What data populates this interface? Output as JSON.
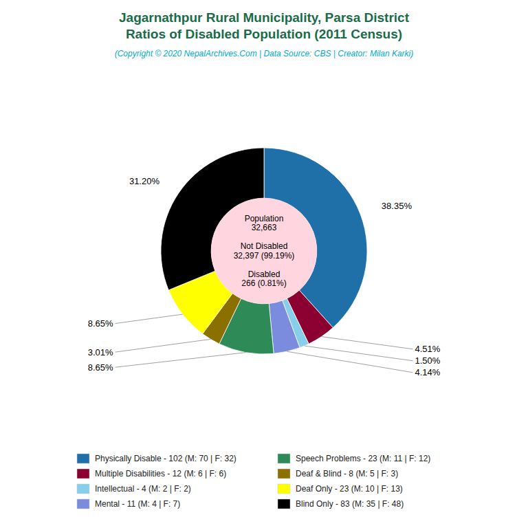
{
  "chart_data": {
    "type": "pie",
    "title": [
      "Jagarnathpur Rural Municipality, Parsa District",
      "Ratios of Disabled Population (2011 Census)"
    ],
    "subtitle": "(Copyright © 2020 NepalArchives.Com | Data Source: CBS | Creator: Milan Karki)",
    "categories": [
      "Physically Disable - 102 (M: 70 | F: 32)",
      "Multiple Disabilities - 12 (M: 6 | F: 6)",
      "Intellectual - 4 (M: 2 | F: 2)",
      "Mental - 11 (M: 4 | F: 7)",
      "Speech Problems - 23 (M: 11 | F: 12)",
      "Deaf & Blind - 8 (M: 5 | F: 3)",
      "Deaf Only - 23 (M: 10 | F: 13)",
      "Blind Only - 83 (M: 35 | F: 48)"
    ],
    "values": [
      38.35,
      4.51,
      1.5,
      4.14,
      8.65,
      3.01,
      8.65,
      31.2
    ],
    "value_labels": [
      "38.35%",
      "4.51%",
      "1.50%",
      "4.14%",
      "8.65%",
      "3.01%",
      "8.65%",
      "31.20%"
    ],
    "data_labels": true,
    "colors": [
      "#1f6fa8",
      "#8b0030",
      "#87ceeb",
      "#7b8cde",
      "#2e8b57",
      "#8b7000",
      "#ffff00",
      "#000000"
    ],
    "annotations": [
      "Population",
      "32,663",
      "Not Disabled",
      "32,397 (99.19%)",
      "Disabled",
      "266 (0.81%)"
    ],
    "legend": "bottom"
  }
}
